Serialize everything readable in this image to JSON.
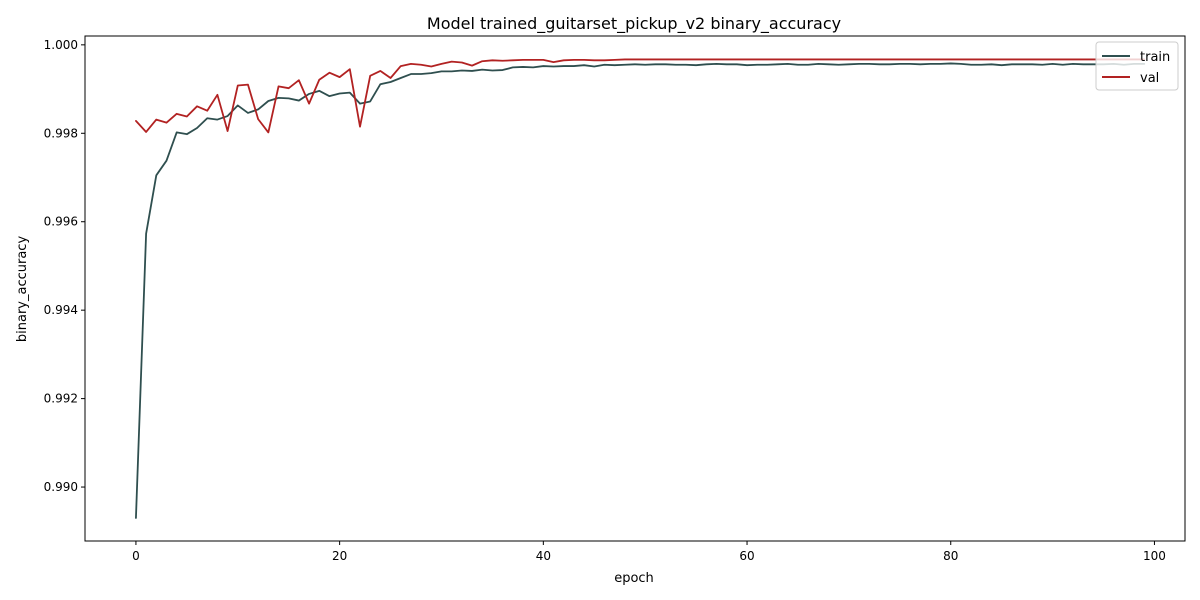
{
  "chart_data": {
    "type": "line",
    "title": "Model trained_guitarset_pickup_v2 binary_accuracy",
    "xlabel": "epoch",
    "ylabel": "binary_accuracy",
    "xlim": [
      -5,
      103
    ],
    "ylim": [
      0.98878,
      1.0002
    ],
    "xticks": [
      0,
      20,
      40,
      60,
      80,
      100
    ],
    "yticks": [
      0.99,
      0.992,
      0.994,
      0.996,
      0.998,
      1.0
    ],
    "xtick_labels": [
      "0",
      "20",
      "40",
      "60",
      "80",
      "100"
    ],
    "ytick_labels": [
      "0.990",
      "0.992",
      "0.994",
      "0.996",
      "0.998",
      "1.000"
    ],
    "grid": false,
    "legend_position": "top-right",
    "x": [
      0,
      1,
      2,
      3,
      4,
      5,
      6,
      7,
      8,
      9,
      10,
      11,
      12,
      13,
      14,
      15,
      16,
      17,
      18,
      19,
      20,
      21,
      22,
      23,
      24,
      25,
      26,
      27,
      28,
      29,
      30,
      31,
      32,
      33,
      34,
      35,
      36,
      37,
      38,
      39,
      40,
      41,
      42,
      43,
      44,
      45,
      46,
      47,
      48,
      49,
      50,
      51,
      52,
      53,
      54,
      55,
      56,
      57,
      58,
      59,
      60,
      61,
      62,
      63,
      64,
      65,
      66,
      67,
      68,
      69,
      70,
      71,
      72,
      73,
      74,
      75,
      76,
      77,
      78,
      79,
      80,
      81,
      82,
      83,
      84,
      85,
      86,
      87,
      88,
      89,
      90,
      91,
      92,
      93,
      94,
      95,
      96,
      97,
      98,
      99
    ],
    "series": [
      {
        "name": "train",
        "color": "#2f4f4f",
        "values": [
          0.9893,
          0.99573,
          0.99705,
          0.99738,
          0.99802,
          0.99798,
          0.99812,
          0.99834,
          0.99831,
          0.99839,
          0.99863,
          0.99846,
          0.99854,
          0.99873,
          0.9988,
          0.99879,
          0.99874,
          0.99889,
          0.99896,
          0.99884,
          0.9989,
          0.99892,
          0.99867,
          0.99872,
          0.99911,
          0.99916,
          0.99925,
          0.99934,
          0.99934,
          0.99936,
          0.9994,
          0.9994,
          0.99942,
          0.99941,
          0.99944,
          0.99942,
          0.99943,
          0.99949,
          0.9995,
          0.99949,
          0.99952,
          0.99951,
          0.99952,
          0.99952,
          0.99954,
          0.99951,
          0.99955,
          0.99954,
          0.99955,
          0.99956,
          0.99955,
          0.99956,
          0.99956,
          0.99955,
          0.99955,
          0.99954,
          0.99956,
          0.99957,
          0.99956,
          0.99956,
          0.99954,
          0.99955,
          0.99955,
          0.99956,
          0.99957,
          0.99955,
          0.99955,
          0.99957,
          0.99956,
          0.99955,
          0.99956,
          0.99957,
          0.99957,
          0.99956,
          0.99956,
          0.99957,
          0.99957,
          0.99956,
          0.99957,
          0.99957,
          0.99958,
          0.99957,
          0.99955,
          0.99955,
          0.99956,
          0.99954,
          0.99956,
          0.99956,
          0.99956,
          0.99955,
          0.99957,
          0.99955,
          0.99957,
          0.99956,
          0.99956,
          0.99956,
          0.99957,
          0.99955,
          0.99957,
          0.99957
        ]
      },
      {
        "name": "val",
        "color": "#b22222",
        "values": [
          0.99828,
          0.99803,
          0.99831,
          0.99824,
          0.99844,
          0.99838,
          0.99861,
          0.99851,
          0.99887,
          0.99805,
          0.99908,
          0.9991,
          0.99832,
          0.99802,
          0.99906,
          0.99902,
          0.9992,
          0.99867,
          0.99921,
          0.99937,
          0.99927,
          0.99945,
          0.99815,
          0.9993,
          0.99941,
          0.99925,
          0.99952,
          0.99957,
          0.99955,
          0.99951,
          0.99957,
          0.99962,
          0.9996,
          0.99953,
          0.99963,
          0.99965,
          0.99964,
          0.99965,
          0.99966,
          0.99966,
          0.99966,
          0.99961,
          0.99965,
          0.99966,
          0.99966,
          0.99965,
          0.99965,
          0.99966,
          0.99967,
          0.99967,
          0.99967,
          0.99967,
          0.99967,
          0.99967,
          0.99967,
          0.99967,
          0.99967,
          0.99967,
          0.99967,
          0.99967,
          0.99967,
          0.99967,
          0.99967,
          0.99967,
          0.99967,
          0.99967,
          0.99967,
          0.99967,
          0.99967,
          0.99967,
          0.99967,
          0.99967,
          0.99967,
          0.99967,
          0.99967,
          0.99967,
          0.99967,
          0.99967,
          0.99967,
          0.99967,
          0.99967,
          0.99967,
          0.99967,
          0.99967,
          0.99967,
          0.99967,
          0.99967,
          0.99967,
          0.99967,
          0.99967,
          0.99967,
          0.99967,
          0.99967,
          0.99967,
          0.99967,
          0.99967,
          0.99967,
          0.99967,
          0.99967,
          0.99967
        ]
      }
    ]
  }
}
